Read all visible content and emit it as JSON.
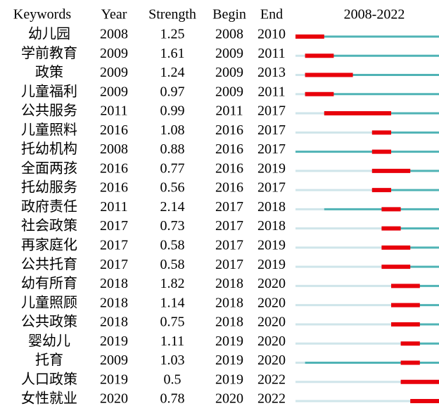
{
  "table": {
    "columns": [
      "Keywords",
      "Year",
      "Strength",
      "Begin",
      "End"
    ],
    "timeline": {
      "label": "2008-2022",
      "start": 2008,
      "end": 2022
    },
    "rows": [
      {
        "keyword": "幼儿园",
        "year": 2008,
        "strength": 1.25,
        "begin": 2008,
        "end": 2010
      },
      {
        "keyword": "学前教育",
        "year": 2009,
        "strength": 1.61,
        "begin": 2009,
        "end": 2011
      },
      {
        "keyword": "政策",
        "year": 2009,
        "strength": 1.24,
        "begin": 2009,
        "end": 2013
      },
      {
        "keyword": "儿童福利",
        "year": 2009,
        "strength": 0.97,
        "begin": 2009,
        "end": 2011
      },
      {
        "keyword": "公共服务",
        "year": 2011,
        "strength": 0.99,
        "begin": 2011,
        "end": 2017
      },
      {
        "keyword": "儿童照料",
        "year": 2016,
        "strength": 1.08,
        "begin": 2016,
        "end": 2017
      },
      {
        "keyword": "托幼机构",
        "year": 2008,
        "strength": 0.88,
        "begin": 2016,
        "end": 2017
      },
      {
        "keyword": "全面两孩",
        "year": 2016,
        "strength": 0.77,
        "begin": 2016,
        "end": 2019
      },
      {
        "keyword": "托幼服务",
        "year": 2016,
        "strength": 0.56,
        "begin": 2016,
        "end": 2017
      },
      {
        "keyword": "政府责任",
        "year": 2011,
        "strength": 2.14,
        "begin": 2017,
        "end": 2018
      },
      {
        "keyword": "社会政策",
        "year": 2017,
        "strength": 0.73,
        "begin": 2017,
        "end": 2018
      },
      {
        "keyword": "再家庭化",
        "year": 2017,
        "strength": 0.58,
        "begin": 2017,
        "end": 2019
      },
      {
        "keyword": "公共托育",
        "year": 2017,
        "strength": 0.58,
        "begin": 2017,
        "end": 2019
      },
      {
        "keyword": "幼有所育",
        "year": 2018,
        "strength": 1.82,
        "begin": 2018,
        "end": 2020
      },
      {
        "keyword": "儿童照顾",
        "year": 2018,
        "strength": 1.14,
        "begin": 2018,
        "end": 2020
      },
      {
        "keyword": "公共政策",
        "year": 2018,
        "strength": 0.75,
        "begin": 2018,
        "end": 2020
      },
      {
        "keyword": "婴幼儿",
        "year": 2019,
        "strength": 1.11,
        "begin": 2019,
        "end": 2020
      },
      {
        "keyword": "托育",
        "year": 2009,
        "strength": 1.03,
        "begin": 2019,
        "end": 2020
      },
      {
        "keyword": "人口政策",
        "year": 2019,
        "strength": 0.5,
        "begin": 2019,
        "end": 2022
      },
      {
        "keyword": "女性就业",
        "year": 2020,
        "strength": 0.78,
        "begin": 2020,
        "end": 2022
      }
    ]
  }
}
